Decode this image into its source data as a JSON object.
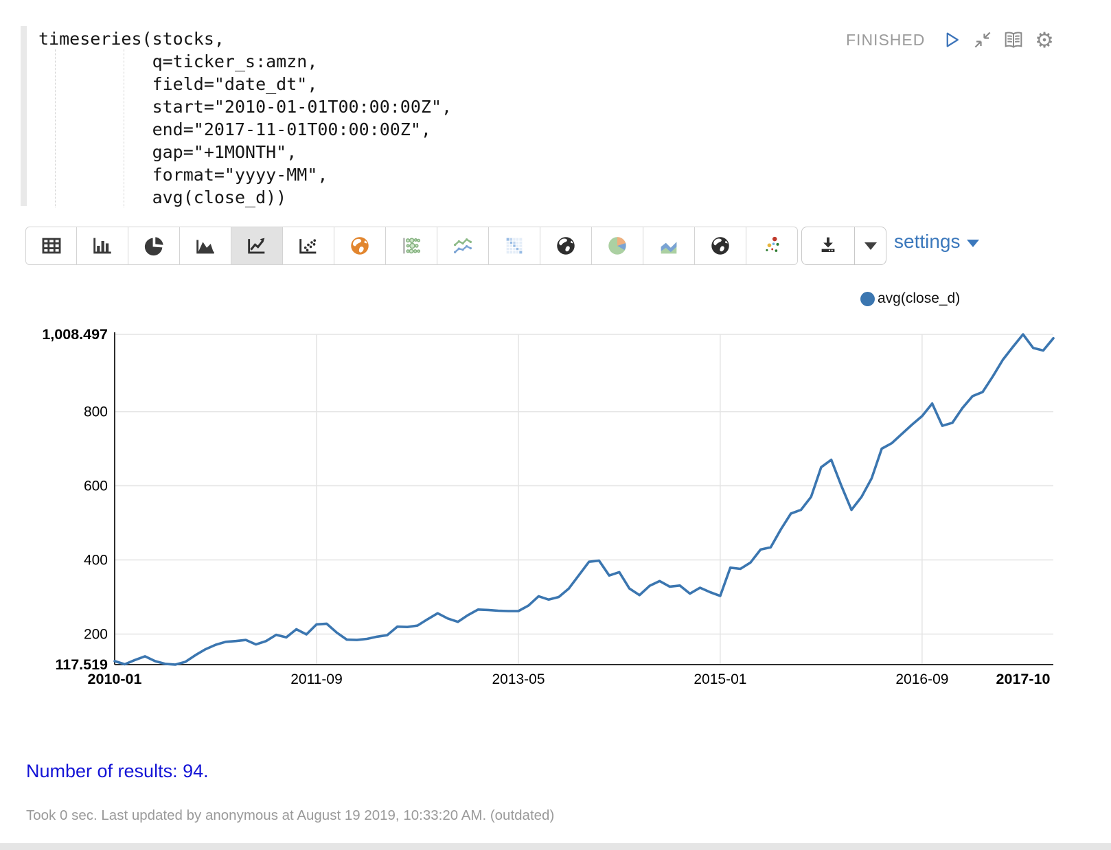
{
  "editor": {
    "code_lines": [
      "timeseries(stocks,",
      "           q=ticker_s:amzn,",
      "           field=\"date_dt\",",
      "           start=\"2010-01-01T00:00:00Z\",",
      "           end=\"2017-11-01T00:00:00Z\",",
      "           gap=\"+1MONTH\",",
      "           format=\"yyyy-MM\",",
      "           avg(close_d))"
    ]
  },
  "status": {
    "label": "FINISHED",
    "icons": [
      "play-icon",
      "compress-icon",
      "book-icon",
      "gear-icon"
    ]
  },
  "toolbar": {
    "buttons": [
      {
        "name": "table-icon",
        "icon": "table",
        "selected": false
      },
      {
        "name": "bar-chart-icon",
        "icon": "bar",
        "selected": false
      },
      {
        "name": "pie-chart-icon",
        "icon": "pie",
        "selected": false
      },
      {
        "name": "area-chart-icon",
        "icon": "area",
        "selected": false
      },
      {
        "name": "line-chart-icon",
        "icon": "line",
        "selected": true
      },
      {
        "name": "scatter-chart-icon",
        "icon": "scatter",
        "selected": false
      },
      {
        "name": "world-map-orange-icon",
        "icon": "map-orange",
        "selected": false
      },
      {
        "name": "bubble-chart-icon",
        "icon": "bubble",
        "selected": false
      },
      {
        "name": "multi-line-chart-icon",
        "icon": "multiline",
        "selected": false
      },
      {
        "name": "heatmap-icon",
        "icon": "heatmap",
        "selected": false
      },
      {
        "name": "globe-dark-icon",
        "icon": "globe-dark",
        "selected": false
      },
      {
        "name": "pie-chart-color-icon",
        "icon": "pie-color",
        "selected": false
      },
      {
        "name": "stacked-area-chart-icon",
        "icon": "stacked-area",
        "selected": false
      },
      {
        "name": "globe-dark-icon-2",
        "icon": "globe-dark",
        "selected": false
      },
      {
        "name": "scatter-color-icon",
        "icon": "scatter-color",
        "selected": false
      }
    ],
    "download_label": "download-icon",
    "settings_label": "settings"
  },
  "legend": {
    "label": "avg(close_d)"
  },
  "chart_data": {
    "type": "line",
    "title": "",
    "xlabel": "",
    "ylabel": "",
    "ylim": [
      117.519,
      1008.497
    ],
    "grid": true,
    "legend_position": "top-right",
    "x": [
      "2010-01",
      "2010-02",
      "2010-03",
      "2010-04",
      "2010-05",
      "2010-06",
      "2010-07",
      "2010-08",
      "2010-09",
      "2010-10",
      "2010-11",
      "2010-12",
      "2011-01",
      "2011-02",
      "2011-03",
      "2011-04",
      "2011-05",
      "2011-06",
      "2011-07",
      "2011-08",
      "2011-09",
      "2011-10",
      "2011-11",
      "2011-12",
      "2012-01",
      "2012-02",
      "2012-03",
      "2012-04",
      "2012-05",
      "2012-06",
      "2012-07",
      "2012-08",
      "2012-09",
      "2012-10",
      "2012-11",
      "2012-12",
      "2013-01",
      "2013-02",
      "2013-03",
      "2013-04",
      "2013-05",
      "2013-06",
      "2013-07",
      "2013-08",
      "2013-09",
      "2013-10",
      "2013-11",
      "2013-12",
      "2014-01",
      "2014-02",
      "2014-03",
      "2014-04",
      "2014-05",
      "2014-06",
      "2014-07",
      "2014-08",
      "2014-09",
      "2014-10",
      "2014-11",
      "2014-12",
      "2015-01",
      "2015-02",
      "2015-03",
      "2015-04",
      "2015-05",
      "2015-06",
      "2015-07",
      "2015-08",
      "2015-09",
      "2015-10",
      "2015-11",
      "2015-12",
      "2016-01",
      "2016-02",
      "2016-03",
      "2016-04",
      "2016-05",
      "2016-06",
      "2016-07",
      "2016-08",
      "2016-09",
      "2016-10",
      "2016-11",
      "2016-12",
      "2017-01",
      "2017-02",
      "2017-03",
      "2017-04",
      "2017-05",
      "2017-06",
      "2017-07",
      "2017-08",
      "2017-09",
      "2017-10"
    ],
    "series": [
      {
        "name": "avg(close_d)",
        "color": "#3b76b0",
        "values": [
          127,
          118.5,
          130,
          140,
          127,
          119.5,
          117.519,
          125,
          143,
          159,
          171,
          179,
          181,
          184,
          172,
          181,
          198,
          191,
          213,
          199,
          226,
          228,
          204,
          185,
          184,
          187,
          193,
          197,
          220,
          219,
          223,
          240,
          256,
          242,
          233,
          251,
          266,
          265,
          263,
          262,
          262,
          277,
          302,
          293,
          300,
          323,
          359,
          395,
          398,
          358,
          367,
          323,
          305,
          330,
          343,
          328,
          331,
          309,
          325,
          313,
          303,
          379,
          376,
          393,
          428,
          434,
          482,
          525,
          535,
          570,
          650,
          670,
          600,
          535,
          570,
          620,
          700,
          715,
          740,
          765,
          788,
          822,
          762,
          770,
          810,
          842,
          853,
          895,
          940,
          975,
          1008.497,
          972,
          965,
          998
        ]
      }
    ],
    "y_ticks": [
      {
        "label": "117.519",
        "value": 117.519,
        "bold": true
      },
      {
        "label": "200",
        "value": 200,
        "bold": false
      },
      {
        "label": "400",
        "value": 400,
        "bold": false
      },
      {
        "label": "600",
        "value": 600,
        "bold": false
      },
      {
        "label": "800",
        "value": 800,
        "bold": false
      },
      {
        "label": "1,008.497",
        "value": 1008.497,
        "bold": true
      }
    ],
    "x_ticks": [
      {
        "label": "2010-01",
        "index": 0,
        "bold": true
      },
      {
        "label": "2011-09",
        "index": 20,
        "bold": false
      },
      {
        "label": "2013-05",
        "index": 40,
        "bold": false
      },
      {
        "label": "2015-01",
        "index": 60,
        "bold": false
      },
      {
        "label": "2016-09",
        "index": 80,
        "bold": false
      },
      {
        "label": "2017-10",
        "index": 93,
        "bold": true
      }
    ],
    "y_grid_values": [
      200,
      400,
      600,
      800,
      1008.497
    ],
    "x_grid_indices": [
      20,
      40,
      60,
      80
    ]
  },
  "results": {
    "text": "Number of results: 94."
  },
  "footer": {
    "text": "Took 0 sec. Last updated by anonymous at August 19 2019, 10:33:20 AM. (outdated)"
  },
  "colors": {
    "accent_blue": "#3b78bc",
    "line_blue": "#3b76b0",
    "result_blue": "#1414d6",
    "status_gray": "#9b9b9b"
  }
}
